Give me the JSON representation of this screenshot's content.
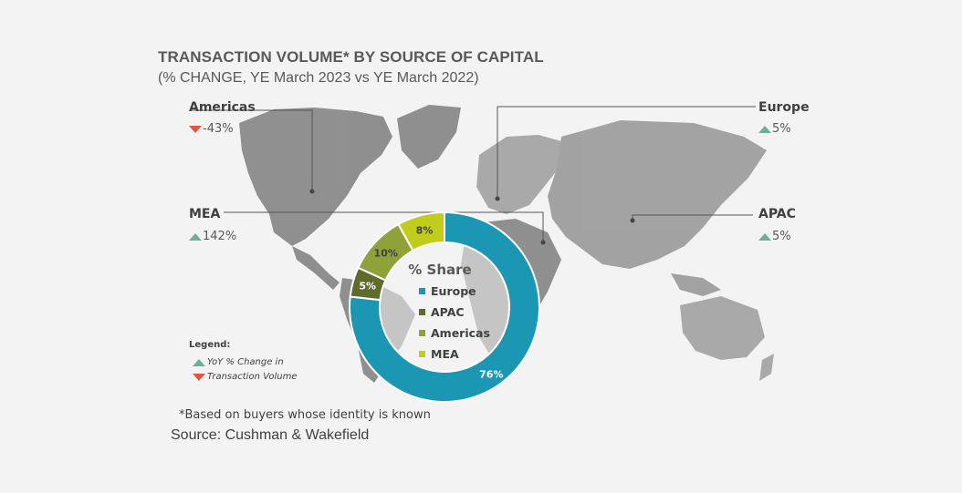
{
  "title": "TRANSACTION VOLUME* BY SOURCE OF CAPITAL",
  "subtitle": "(% CHANGE, YE March 2023 vs YE March 2022)",
  "regions": [
    {
      "name": "Americas",
      "change": "-43%",
      "direction": "down"
    },
    {
      "name": "Europe",
      "change": "5%",
      "direction": "up"
    },
    {
      "name": "MEA",
      "change": "142%",
      "direction": "up"
    },
    {
      "name": "APAC",
      "change": "5%",
      "direction": "up"
    }
  ],
  "legend": {
    "title": "Legend:",
    "up_label": "YoY % Change in",
    "down_label": "Transaction Volume"
  },
  "footnote": "*Based on buyers whose identity is known",
  "source": "Source: Cushman & Wakefield",
  "colors": {
    "europe": "#1b97b3",
    "apac": "#5f6a2b",
    "americas": "#8fa23a",
    "mea": "#c2cc1c",
    "up": "#6fae98",
    "down": "#e0573a",
    "map": "#8a8a8a"
  },
  "chart_data": {
    "type": "pie",
    "title": "% Share",
    "categories": [
      "Europe",
      "APAC",
      "Americas",
      "MEA"
    ],
    "values": [
      76,
      5,
      10,
      8
    ],
    "labels": [
      "76%",
      "5%",
      "10%",
      "8%"
    ]
  }
}
